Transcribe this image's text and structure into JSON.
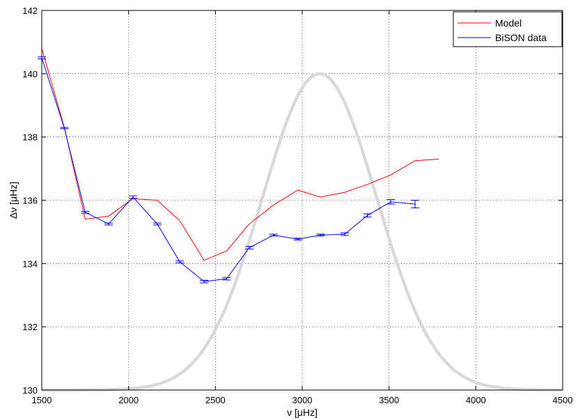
{
  "chart_data": {
    "type": "line",
    "xlabel": "ν [μHz]",
    "ylabel": "Δν [μHz]",
    "xlim": [
      1500,
      4500
    ],
    "ylim": [
      130,
      142
    ],
    "x_ticks": [
      "1500",
      "2000",
      "2500",
      "3000",
      "3500",
      "4000",
      "4500"
    ],
    "y_ticks": [
      "130",
      "132",
      "134",
      "136",
      "138",
      "140",
      "142"
    ],
    "grid": true,
    "legend_position": "top-right",
    "series": [
      {
        "name": "Model",
        "color": "#ff0000",
        "x": [
          1500,
          1630,
          1750,
          1885,
          2025,
          2165,
          2295,
          2435,
          2565,
          2695,
          2835,
          2975,
          3105,
          3245,
          3375,
          3510,
          3650,
          3785
        ],
        "y": [
          140.8,
          138.3,
          135.4,
          135.5,
          136.05,
          136.0,
          135.35,
          134.1,
          134.4,
          135.25,
          135.85,
          136.32,
          136.1,
          136.25,
          136.5,
          136.8,
          137.25,
          137.3
        ]
      },
      {
        "name": "BiSON data",
        "color": "#0000ff",
        "x": [
          1500,
          1630,
          1750,
          1885,
          2025,
          2165,
          2295,
          2435,
          2565,
          2695,
          2835,
          2975,
          3105,
          3245,
          3375,
          3510,
          3650
        ],
        "y": [
          140.5,
          138.28,
          135.62,
          135.25,
          136.1,
          135.25,
          134.05,
          133.43,
          133.52,
          134.5,
          134.9,
          134.77,
          134.9,
          134.93,
          135.52,
          135.95,
          135.88
        ],
        "err": [
          0.03,
          0.02,
          0.03,
          0.03,
          0.04,
          0.03,
          0.03,
          0.04,
          0.04,
          0.04,
          0.03,
          0.03,
          0.03,
          0.04,
          0.05,
          0.07,
          0.12
        ]
      },
      {
        "color": "#d9d9d9",
        "shape": "gaussian",
        "center": 3100,
        "sigma": 330,
        "baseline": 130,
        "peak": 140
      }
    ]
  }
}
